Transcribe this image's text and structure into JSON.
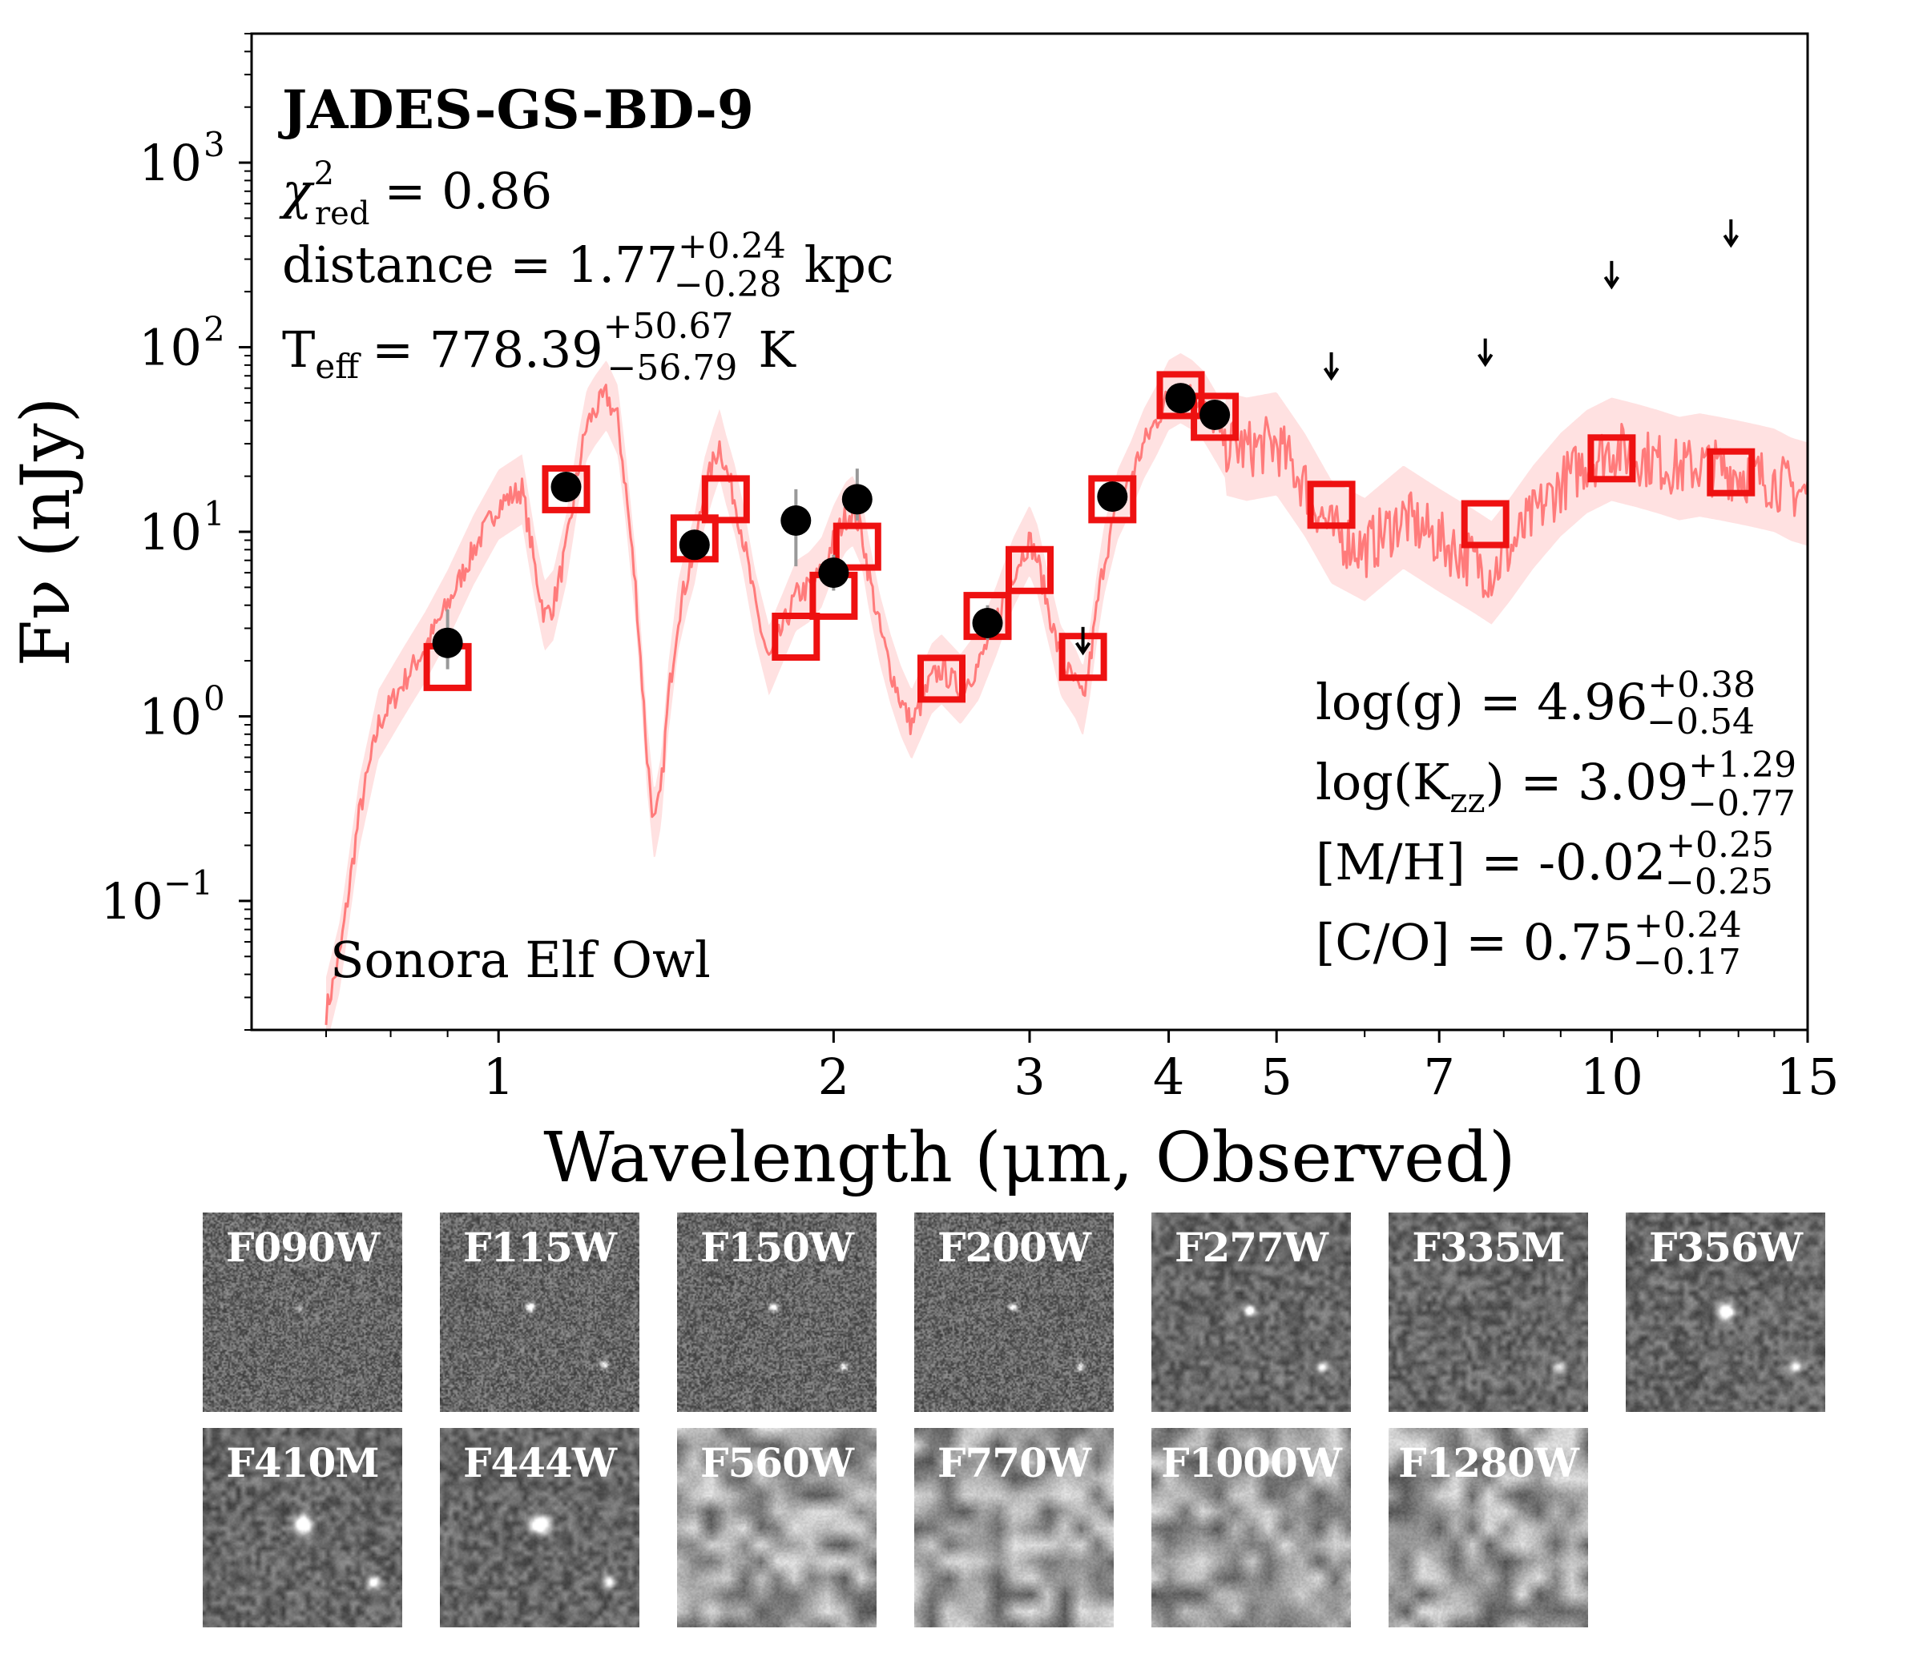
{
  "chart_data": {
    "type": "scatter",
    "title": "JADES-GS-BD-9",
    "xlabel": "Wavelength (μm, Observed)",
    "ylabel": "Fν (nJy)",
    "xscale": "log",
    "yscale": "log",
    "xlim": [
      0.6,
      15
    ],
    "ylim": [
      0.02,
      5000
    ],
    "x_ticks": [
      1,
      2,
      3,
      4,
      5,
      7,
      10,
      15
    ],
    "x_tick_labels": [
      "1",
      "2",
      "3",
      "4",
      "5",
      "7",
      "10",
      "15"
    ],
    "y_ticks": [
      0.1,
      1,
      10,
      100,
      1000
    ],
    "y_tick_labels": [
      "10",
      "10",
      "10",
      "10",
      "10"
    ],
    "y_tick_exponents": [
      "−1",
      "0",
      "1",
      "2",
      "3"
    ],
    "annotations": {
      "chi2_symbol": "χ",
      "chi2_sup": "2",
      "chi2_sub": "red",
      "chi2_value": "= 0.86",
      "distance_label": "distance = 1.77",
      "distance_up": "+0.24",
      "distance_down": "−0.28",
      "distance_unit": "kpc",
      "teff_label": "T",
      "teff_sub": "eff",
      "teff_value": "= 778.39",
      "teff_up": "+50.67",
      "teff_down": "−56.79",
      "teff_unit": "K",
      "logg_label": "log(g) = 4.96",
      "logg_up": "+0.38",
      "logg_down": "−0.54",
      "kzz_label": "log(K",
      "kzz_sub": "zz",
      "kzz_value": ") = 3.09",
      "kzz_up": "+1.29",
      "kzz_down": "−0.77",
      "mh_label": "[M/H] = -0.02",
      "mh_up": "+0.25",
      "mh_down": "−0.25",
      "co_label": "[C/O] = 0.75",
      "co_up": "+0.24",
      "co_down": "−0.17",
      "model_label": "Sonora Elf Owl"
    },
    "model_spectrum": {
      "name": "Sonora Elf Owl",
      "color": "#ff7b7b",
      "x": [
        0.7,
        0.72,
        0.75,
        0.78,
        0.82,
        0.86,
        0.9,
        0.95,
        1.0,
        1.05,
        1.08,
        1.1,
        1.12,
        1.15,
        1.18,
        1.2,
        1.22,
        1.25,
        1.28,
        1.3,
        1.33,
        1.36,
        1.38,
        1.4,
        1.42,
        1.45,
        1.48,
        1.5,
        1.53,
        1.56,
        1.58,
        1.6,
        1.63,
        1.66,
        1.7,
        1.75,
        1.8,
        1.85,
        1.9,
        1.95,
        2.0,
        2.05,
        2.08,
        2.12,
        2.15,
        2.2,
        2.25,
        2.3,
        2.35,
        2.4,
        2.45,
        2.5,
        2.6,
        2.7,
        2.8,
        2.9,
        3.0,
        3.05,
        3.1,
        3.2,
        3.3,
        3.35,
        3.4,
        3.45,
        3.5,
        3.6,
        3.7,
        3.8,
        3.9,
        4.0,
        4.1,
        4.2,
        4.3,
        4.4,
        4.5,
        4.7,
        5.0,
        5.3,
        5.6,
        6.0,
        6.5,
        7.0,
        7.5,
        7.8,
        8.1,
        8.5,
        9.0,
        9.5,
        10.0,
        10.5,
        11.0,
        11.5,
        12.0,
        12.5,
        13.0,
        13.5,
        14.0,
        14.5,
        15.0
      ],
      "y": [
        0.025,
        0.05,
        0.3,
        0.9,
        1.5,
        2.4,
        4.0,
        8.0,
        14,
        17,
        6.0,
        3.5,
        4.0,
        8.0,
        22,
        38,
        45,
        55,
        40,
        18,
        4.5,
        0.6,
        0.25,
        0.4,
        1.2,
        3.5,
        6.0,
        8.0,
        16,
        24,
        30,
        22,
        15,
        9.0,
        4.0,
        2.0,
        3.0,
        4.5,
        5.0,
        6.0,
        9.0,
        12,
        13,
        10,
        6.0,
        3.0,
        1.8,
        1.2,
        0.9,
        1.2,
        1.6,
        1.8,
        1.4,
        1.9,
        3.3,
        6.0,
        9.0,
        7.0,
        4.5,
        2.0,
        1.5,
        1.2,
        2.0,
        4.0,
        7.0,
        14,
        20,
        30,
        40,
        55,
        60,
        55,
        48,
        38,
        30,
        28,
        30,
        18,
        10,
        8.0,
        12,
        9.0,
        7.0,
        6.0,
        8.0,
        12,
        18,
        24,
        28,
        26,
        24,
        22,
        23,
        22,
        21,
        20,
        19,
        17,
        16
      ]
    },
    "model_photometry": {
      "name": "Model photometry",
      "marker": "square",
      "color": "#ee1111",
      "x": [
        0.9,
        1.15,
        1.5,
        1.6,
        1.85,
        2.0,
        2.1,
        2.5,
        2.75,
        3.0,
        3.35,
        3.56,
        4.1,
        4.4,
        5.6,
        7.7,
        10.0,
        12.8
      ],
      "y": [
        1.85,
        17,
        9.2,
        15,
        2.7,
        4.5,
        8.3,
        1.6,
        3.5,
        6.2,
        2.1,
        15,
        55,
        42,
        14,
        11,
        25,
        21
      ]
    },
    "observed_photometry": {
      "name": "Observed photometry",
      "marker": "circle",
      "color": "#000000",
      "x": [
        0.9,
        1.15,
        1.5,
        1.85,
        2.0,
        2.1,
        2.75,
        3.56,
        4.1,
        4.4
      ],
      "y": [
        2.5,
        17.5,
        8.5,
        11.5,
        6.0,
        15.0,
        3.2,
        15.5,
        53,
        43
      ],
      "err_low": [
        1.8,
        15.5,
        7.2,
        6.5,
        4.8,
        11.5,
        2.6,
        13.5,
        46,
        37
      ],
      "err_high": [
        3.8,
        20,
        10,
        17,
        7.5,
        22,
        4.0,
        17.5,
        62,
        50
      ]
    },
    "upper_limits": {
      "name": "Upper limits",
      "marker": "arrow-down",
      "color": "#000000",
      "x": [
        3.35,
        5.6,
        7.7,
        10.0,
        12.8
      ],
      "y": [
        2.6,
        80,
        95,
        250,
        420
      ]
    }
  },
  "cutouts": {
    "row1": [
      "F090W",
      "F115W",
      "F150W",
      "F200W",
      "F277W",
      "F335M",
      "F356W"
    ],
    "row2": [
      "F410M",
      "F444W",
      "F560W",
      "F770W",
      "F1000W",
      "F1280W"
    ]
  }
}
